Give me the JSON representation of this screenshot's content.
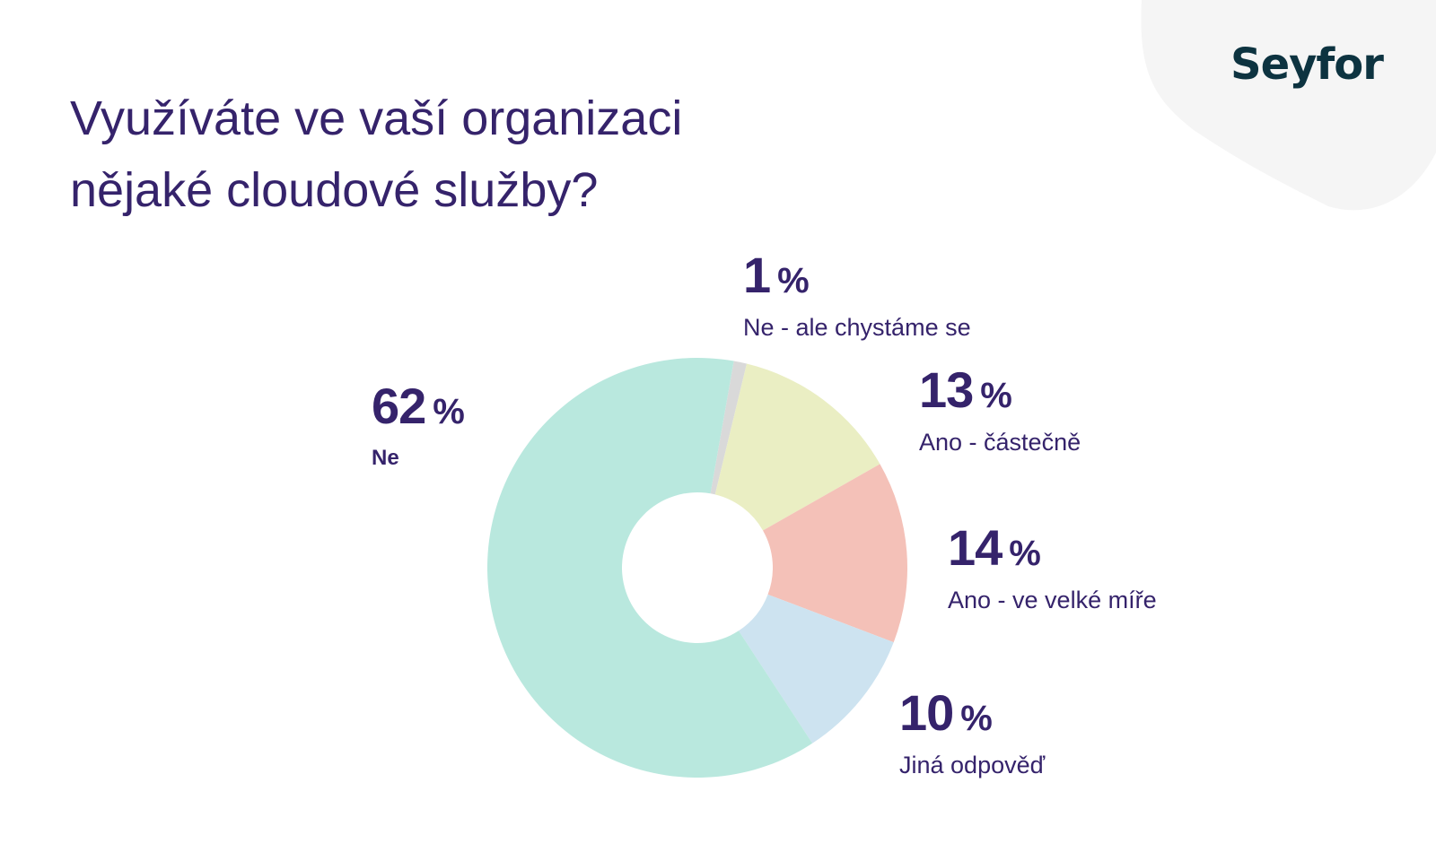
{
  "logo": "Seyfor",
  "title_line1": "Využíváte ve vaší organizaci",
  "title_line2": "nějaké cloudové služby?",
  "colors": {
    "text": "#35236b",
    "logo": "#0d3340",
    "blob": "#f5f5f5"
  },
  "chart_data": {
    "type": "pie",
    "variant": "donut",
    "title": "Využíváte ve vaší organizaci nějaké cloudové služby?",
    "unit": "%",
    "slices": [
      {
        "label": "Ne - ale chystáme se",
        "value": 1,
        "display": "1",
        "color": "#d9d9d9"
      },
      {
        "label": "Ano - částečně",
        "value": 13,
        "display": "13",
        "color": "#eaeec3"
      },
      {
        "label": "Ano - ve velké míře",
        "value": 14,
        "display": "14",
        "color": "#f4c1b8"
      },
      {
        "label": "Jiná odpověď",
        "value": 10,
        "display": "10",
        "color": "#cde3f0"
      },
      {
        "label": "Ne",
        "value": 62,
        "display": "62",
        "color": "#b9e8de"
      }
    ],
    "legend": "labels beside slices"
  }
}
